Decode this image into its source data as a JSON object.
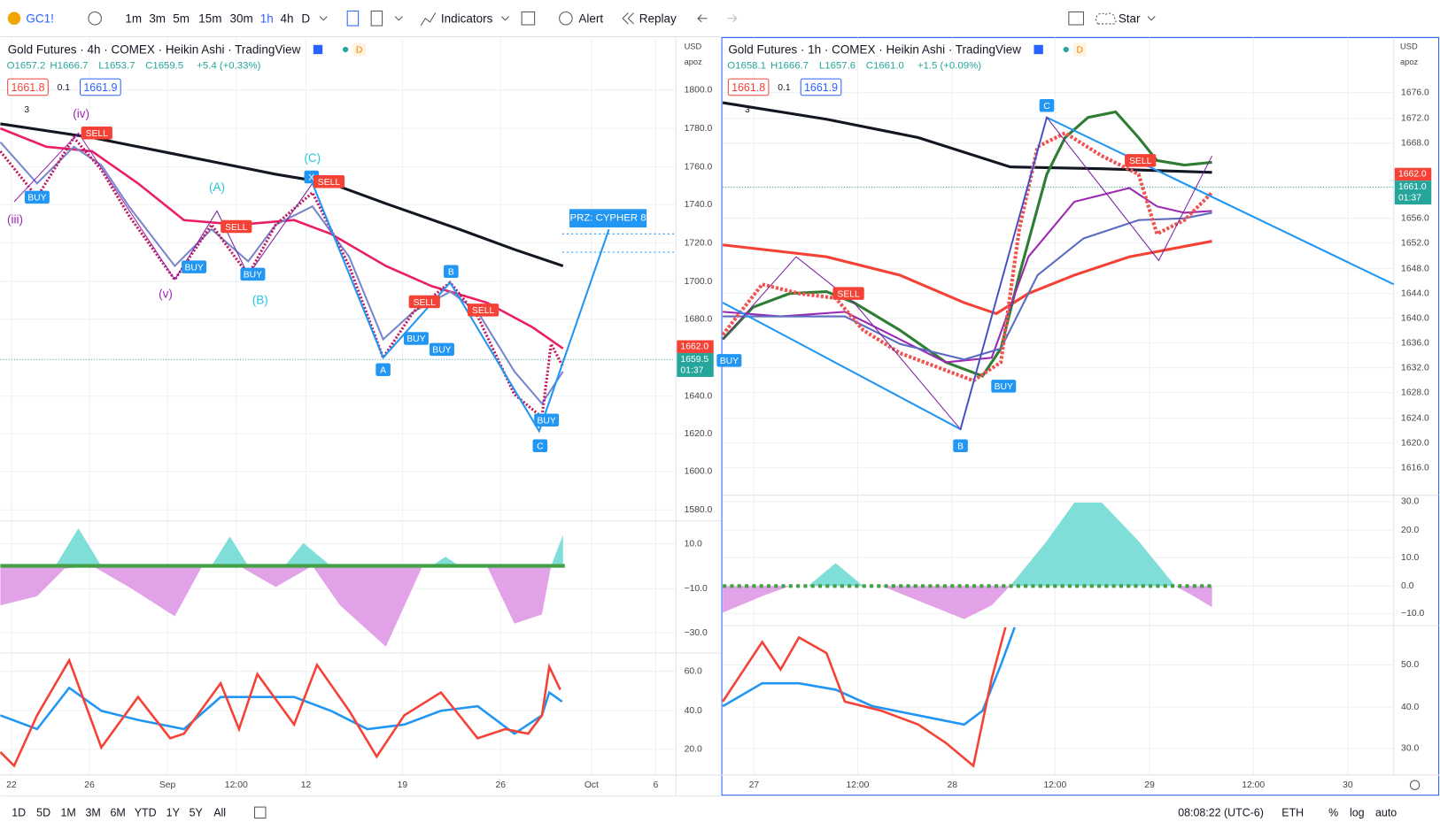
{
  "toolbar": {
    "symbol": "GC1!",
    "intervals": [
      "1m",
      "3m",
      "5m",
      "15m",
      "30m",
      "1h",
      "4h",
      "D"
    ],
    "indicators": "Indicators",
    "alert": "Alert",
    "replay": "Replay",
    "layout": "Star"
  },
  "left_pane": {
    "title": "Gold Futures · 4h · COMEX · Heikin Ashi · TradingView",
    "flag": "D",
    "ohlc": [
      "O1657.2",
      "H1666.7",
      "L1653.7",
      "C1659.5",
      "+5.4 (+0.33%)"
    ],
    "bid": "1661.8",
    "spread": "0.1",
    "ask": "1661.9",
    "indicator_count": "3",
    "currency": "USD",
    "scale_mode": "apoz",
    "last_price": "1662.0",
    "close_price": "1659.5",
    "countdown": "01:37",
    "prz": "PRZ: CYPHER 8",
    "price_ticks": [
      "1800.0",
      "1780.0",
      "1760.0",
      "1740.0",
      "1720.0",
      "1700.0",
      "1680.0",
      "1640.0",
      "1620.0",
      "1600.0",
      "1580.0"
    ],
    "osc_ticks": [
      "10.0",
      "−10.0",
      "−30.0"
    ],
    "rsi_ticks": [
      "60.0",
      "40.0",
      "20.0"
    ],
    "x_labels": [
      "22",
      "26",
      "Sep",
      "12:00",
      "12",
      "19",
      "26",
      "Oct",
      "6"
    ],
    "annotations": [
      "(iv)",
      "SELL",
      "(iii)",
      "BUY",
      "(A)",
      "SELL",
      "BUY",
      "(v)",
      "BUY",
      "(B)",
      "(C)",
      "X",
      "SELL",
      "B",
      "SELL",
      "SELL",
      "BUY",
      "BUY",
      "A",
      "BUY",
      "C"
    ]
  },
  "right_pane": {
    "title": "Gold Futures · 1h · COMEX · Heikin Ashi · TradingView",
    "flag": "D",
    "ohlc": [
      "O1658.1",
      "H1666.7",
      "L1657.6",
      "C1661.0",
      "+1.5 (+0.09%)"
    ],
    "bid": "1661.8",
    "spread": "0.1",
    "ask": "1661.9",
    "indicator_count": "3",
    "currency": "USD",
    "scale_mode": "apoz",
    "last_price": "1662.0",
    "close_price": "1661.0",
    "countdown": "01:37",
    "price_ticks": [
      "1676.0",
      "1672.0",
      "1668.0",
      "1656.0",
      "1652.0",
      "1648.0",
      "1644.0",
      "1640.0",
      "1636.0",
      "1632.0",
      "1628.0",
      "1624.0",
      "1620.0",
      "1616.0"
    ],
    "osc_ticks": [
      "30.0",
      "20.0",
      "10.0",
      "0.0",
      "−10.0"
    ],
    "rsi_ticks": [
      "50.0",
      "40.0",
      "30.0"
    ],
    "x_labels": [
      "27",
      "12:00",
      "28",
      "12:00",
      "29",
      "12:00",
      "30"
    ],
    "annotations": [
      "C",
      "SELL",
      "SELL",
      "BUY",
      "BUY",
      "B"
    ]
  },
  "bottom_bar": {
    "ranges": [
      "1D",
      "5D",
      "1M",
      "3M",
      "6M",
      "YTD",
      "1Y",
      "5Y",
      "All"
    ],
    "clock": "08:08:22 (UTC-6)",
    "session": "ETH",
    "percent": "%",
    "log": "log",
    "auto": "auto"
  }
}
